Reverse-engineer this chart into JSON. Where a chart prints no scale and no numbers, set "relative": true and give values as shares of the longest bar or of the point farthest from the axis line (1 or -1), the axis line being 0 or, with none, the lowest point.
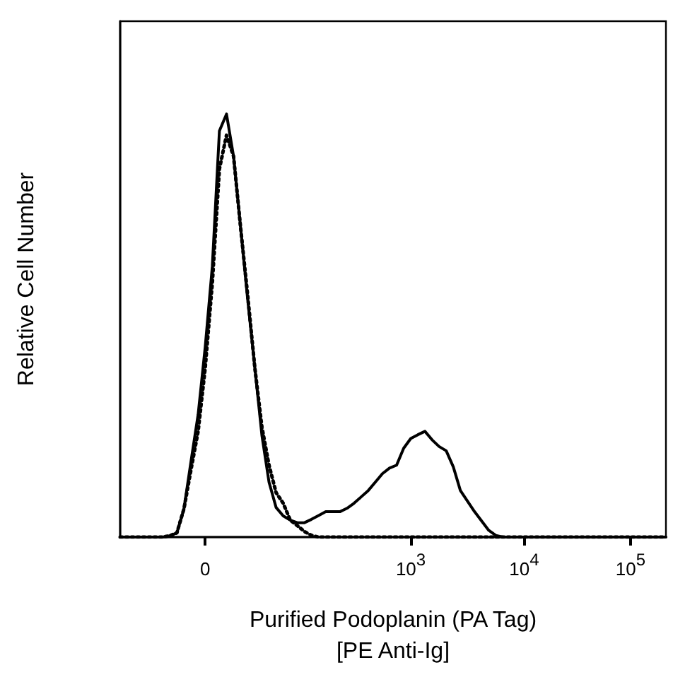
{
  "chart_data": {
    "type": "line",
    "relative": true,
    "xlabel": "Purified Podoplanin (PA Tag)\n[PE Anti-Ig]",
    "ylabel": "Relative Cell Number",
    "categories": [
      null,
      null,
      null,
      null,
      null,
      null,
      null,
      null,
      null,
      null,
      null,
      null,
      "0",
      null,
      null,
      null,
      null,
      null,
      null,
      null,
      null,
      null,
      null,
      null,
      null,
      null,
      null,
      null,
      null,
      null,
      null,
      null,
      null,
      null,
      null,
      null,
      null,
      null,
      null,
      null,
      null,
      "10$^{3}$",
      null,
      null,
      null,
      null,
      null,
      null,
      null,
      null,
      null,
      null,
      null,
      null,
      null,
      null,
      null,
      "10$^{4}$",
      null,
      null,
      null,
      null,
      null,
      null,
      null,
      null,
      null,
      null,
      null,
      null,
      null,
      null,
      "10$^{5}$",
      null,
      null,
      null,
      null,
      null
    ],
    "series": [
      {
        "color": "#000000",
        "line_style": "solid",
        "values": [
          0,
          0,
          0,
          0,
          0,
          0,
          0,
          0.003,
          0.01,
          0.067,
          0.18,
          0.29,
          0.45,
          0.64,
          0.96,
          1,
          0.9,
          0.73,
          0.56,
          0.4,
          0.24,
          0.13,
          0.07,
          0.05,
          0.04,
          0.034,
          0.034,
          0.042,
          0.051,
          0.06,
          0.06,
          0.06,
          0.068,
          0.08,
          0.095,
          0.11,
          0.13,
          0.15,
          0.163,
          0.17,
          0.21,
          0.233,
          0.242,
          0.25,
          0.23,
          0.214,
          0.204,
          0.166,
          0.11,
          0.085,
          0.06,
          0.038,
          0.016,
          0.004,
          0,
          0,
          0,
          0,
          0,
          0,
          0,
          0,
          0,
          0,
          0,
          0,
          0,
          0,
          0,
          0,
          0,
          0,
          0,
          0,
          0,
          0,
          0,
          0
        ]
      },
      {
        "color": "#000000",
        "line_style": "dotted",
        "values": [
          0,
          0,
          0,
          0,
          0,
          0,
          0,
          0.003,
          0.01,
          0.067,
          0.16,
          0.25,
          0.4,
          0.6,
          0.87,
          0.95,
          0.9,
          0.73,
          0.57,
          0.4,
          0.26,
          0.17,
          0.105,
          0.08,
          0.04,
          0.027,
          0.013,
          0.004,
          0,
          0,
          0,
          0,
          0,
          0,
          0,
          0,
          0,
          0,
          0,
          0,
          0,
          0,
          0,
          0,
          0,
          0,
          0,
          0,
          0,
          0,
          0,
          0,
          0,
          0,
          0,
          0,
          0,
          0,
          0,
          0,
          0,
          0,
          0,
          0,
          0,
          0,
          0,
          0,
          0,
          0,
          0,
          0,
          0,
          0,
          0,
          0,
          0,
          0
        ]
      }
    ]
  }
}
